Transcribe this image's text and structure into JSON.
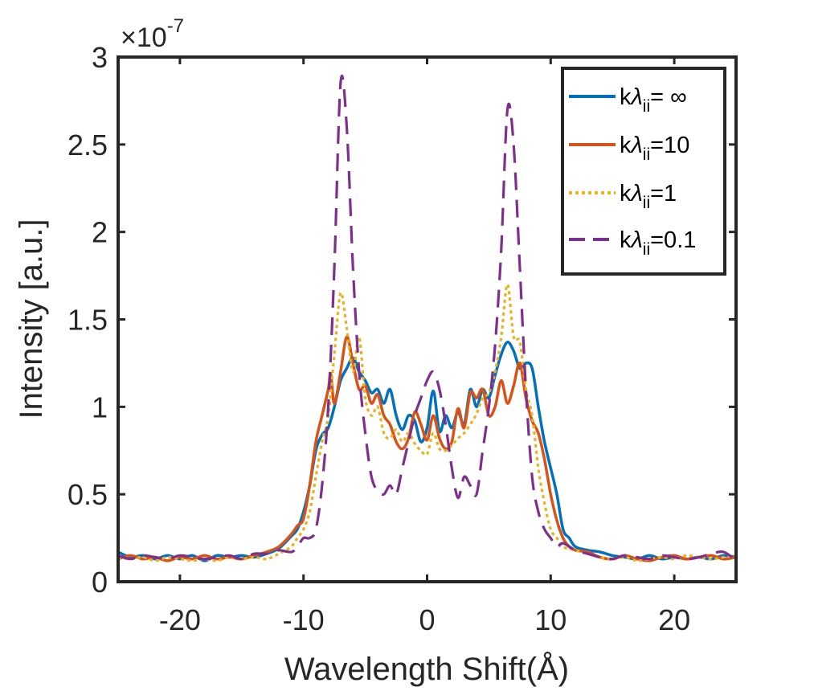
{
  "chart_data": {
    "type": "line",
    "title": "",
    "xlabel": "Wavelength Shift(Å)",
    "ylabel": "Intensity [a.u.]",
    "xlim": [
      -25,
      25
    ],
    "ylim": [
      0,
      3
    ],
    "y_multiplier": {
      "base": "×10",
      "exponent": "-7"
    },
    "xticks": [
      -20,
      -10,
      0,
      10,
      20
    ],
    "xtick_labels": [
      "-20",
      "-10",
      "0",
      "10",
      "20"
    ],
    "yticks": [
      0,
      0.5,
      1,
      1.5,
      2,
      2.5,
      3
    ],
    "ytick_labels": [
      "0",
      "0.5",
      "1",
      "1.5",
      "2",
      "2.5",
      "3"
    ],
    "grid": false,
    "legend_position": "top-right",
    "series": [
      {
        "name": "inf",
        "legend": {
          "k": "k",
          "lambda": "λ",
          "sub": "ii",
          "eq": "= ∞"
        },
        "color": "#0072BD",
        "style": "solid",
        "points": [
          [
            -25,
            0.17
          ],
          [
            -24,
            0.14
          ],
          [
            -23,
            0.15
          ],
          [
            -22,
            0.13
          ],
          [
            -21,
            0.15
          ],
          [
            -20,
            0.13
          ],
          [
            -19,
            0.15
          ],
          [
            -18,
            0.12
          ],
          [
            -17,
            0.15
          ],
          [
            -16,
            0.14
          ],
          [
            -15,
            0.15
          ],
          [
            -14,
            0.14
          ],
          [
            -13,
            0.16
          ],
          [
            -12,
            0.19
          ],
          [
            -11,
            0.26
          ],
          [
            -10.5,
            0.3
          ],
          [
            -10,
            0.4
          ],
          [
            -9.5,
            0.55
          ],
          [
            -9,
            0.75
          ],
          [
            -8.5,
            0.84
          ],
          [
            -8,
            0.88
          ],
          [
            -7.5,
            1.0
          ],
          [
            -7,
            1.15
          ],
          [
            -6.5,
            1.22
          ],
          [
            -6,
            1.28
          ],
          [
            -5.5,
            1.2
          ],
          [
            -5,
            1.15
          ],
          [
            -4.5,
            1.08
          ],
          [
            -4,
            1.1
          ],
          [
            -3.5,
            1.02
          ],
          [
            -3,
            1.1
          ],
          [
            -2.5,
            0.95
          ],
          [
            -2,
            0.87
          ],
          [
            -1.5,
            0.95
          ],
          [
            -1,
            0.92
          ],
          [
            -0.5,
            0.8
          ],
          [
            0,
            0.88
          ],
          [
            0.5,
            1.09
          ],
          [
            1,
            0.86
          ],
          [
            1.5,
            0.95
          ],
          [
            2,
            0.88
          ],
          [
            2.5,
            0.97
          ],
          [
            3,
            0.9
          ],
          [
            3.5,
            1.1
          ],
          [
            4,
            1.0
          ],
          [
            4.5,
            1.1
          ],
          [
            5,
            1.05
          ],
          [
            5.5,
            1.18
          ],
          [
            6,
            1.3
          ],
          [
            6.5,
            1.37
          ],
          [
            7,
            1.32
          ],
          [
            7.5,
            1.22
          ],
          [
            8,
            1.25
          ],
          [
            8.5,
            1.22
          ],
          [
            9,
            1.0
          ],
          [
            9.5,
            0.8
          ],
          [
            10,
            0.65
          ],
          [
            10.5,
            0.5
          ],
          [
            11,
            0.3
          ],
          [
            11.5,
            0.25
          ],
          [
            12,
            0.2
          ],
          [
            13,
            0.18
          ],
          [
            14,
            0.17
          ],
          [
            15,
            0.15
          ],
          [
            16,
            0.14
          ],
          [
            17,
            0.13
          ],
          [
            18,
            0.15
          ],
          [
            19,
            0.13
          ],
          [
            20,
            0.14
          ],
          [
            21,
            0.13
          ],
          [
            22,
            0.14
          ],
          [
            23,
            0.13
          ],
          [
            24,
            0.15
          ],
          [
            25,
            0.14
          ]
        ]
      },
      {
        "name": "10",
        "legend": {
          "k": "k",
          "lambda": "λ",
          "sub": "ii",
          "eq": "=10"
        },
        "color": "#D95319",
        "style": "solid",
        "points": [
          [
            -25,
            0.13
          ],
          [
            -24,
            0.15
          ],
          [
            -23,
            0.13
          ],
          [
            -22,
            0.14
          ],
          [
            -21,
            0.12
          ],
          [
            -20,
            0.14
          ],
          [
            -19,
            0.13
          ],
          [
            -18,
            0.15
          ],
          [
            -17,
            0.13
          ],
          [
            -16,
            0.14
          ],
          [
            -15,
            0.13
          ],
          [
            -14,
            0.15
          ],
          [
            -13,
            0.17
          ],
          [
            -12,
            0.2
          ],
          [
            -11,
            0.27
          ],
          [
            -10.5,
            0.32
          ],
          [
            -10,
            0.36
          ],
          [
            -9.5,
            0.55
          ],
          [
            -9,
            0.8
          ],
          [
            -8.5,
            0.95
          ],
          [
            -8,
            1.1
          ],
          [
            -7.8,
            1.19
          ],
          [
            -7.5,
            1.02
          ],
          [
            -7,
            1.2
          ],
          [
            -6.5,
            1.4
          ],
          [
            -6,
            1.25
          ],
          [
            -5.5,
            1.1
          ],
          [
            -5,
            1.12
          ],
          [
            -4.5,
            1.02
          ],
          [
            -4,
            1.07
          ],
          [
            -3.5,
            0.95
          ],
          [
            -3,
            0.9
          ],
          [
            -2.5,
            0.8
          ],
          [
            -2,
            0.76
          ],
          [
            -1.5,
            0.82
          ],
          [
            -1,
            0.97
          ],
          [
            -0.5,
            0.9
          ],
          [
            0,
            0.81
          ],
          [
            0.5,
            0.95
          ],
          [
            1,
            0.82
          ],
          [
            1.5,
            0.76
          ],
          [
            2,
            0.8
          ],
          [
            2.5,
            0.99
          ],
          [
            3,
            0.88
          ],
          [
            3.5,
            1.08
          ],
          [
            4,
            1.05
          ],
          [
            4.5,
            1.1
          ],
          [
            5,
            0.95
          ],
          [
            5.5,
            1.0
          ],
          [
            6,
            1.15
          ],
          [
            6.5,
            1.02
          ],
          [
            7,
            1.12
          ],
          [
            7.5,
            1.25
          ],
          [
            8,
            1.05
          ],
          [
            8.5,
            0.92
          ],
          [
            9,
            0.85
          ],
          [
            9.5,
            0.7
          ],
          [
            10,
            0.5
          ],
          [
            10.5,
            0.35
          ],
          [
            11,
            0.25
          ],
          [
            11.5,
            0.2
          ],
          [
            12,
            0.18
          ],
          [
            13,
            0.17
          ],
          [
            14,
            0.14
          ],
          [
            15,
            0.13
          ],
          [
            16,
            0.15
          ],
          [
            17,
            0.13
          ],
          [
            18,
            0.12
          ],
          [
            19,
            0.14
          ],
          [
            20,
            0.15
          ],
          [
            21,
            0.13
          ],
          [
            22,
            0.14
          ],
          [
            23,
            0.15
          ],
          [
            24,
            0.13
          ],
          [
            25,
            0.14
          ]
        ]
      },
      {
        "name": "1",
        "legend": {
          "k": "k",
          "lambda": "λ",
          "sub": "ii",
          "eq": "=1"
        },
        "color": "#EDB120",
        "style": "dotted",
        "points": [
          [
            -25,
            0.14
          ],
          [
            -24,
            0.13
          ],
          [
            -23,
            0.14
          ],
          [
            -22,
            0.12
          ],
          [
            -21,
            0.14
          ],
          [
            -20,
            0.13
          ],
          [
            -19,
            0.12
          ],
          [
            -18,
            0.13
          ],
          [
            -17,
            0.12
          ],
          [
            -16,
            0.14
          ],
          [
            -15,
            0.13
          ],
          [
            -14,
            0.14
          ],
          [
            -13,
            0.13
          ],
          [
            -12,
            0.16
          ],
          [
            -11,
            0.2
          ],
          [
            -10.5,
            0.25
          ],
          [
            -10,
            0.3
          ],
          [
            -9.5,
            0.4
          ],
          [
            -9,
            0.6
          ],
          [
            -8.5,
            0.8
          ],
          [
            -8,
            0.95
          ],
          [
            -7.5,
            1.3
          ],
          [
            -7,
            1.65
          ],
          [
            -6.5,
            1.45
          ],
          [
            -6,
            1.2
          ],
          [
            -5.5,
            1.4
          ],
          [
            -5,
            1.05
          ],
          [
            -4.5,
            0.95
          ],
          [
            -4,
            1.0
          ],
          [
            -3.5,
            0.85
          ],
          [
            -3,
            0.82
          ],
          [
            -2.5,
            0.87
          ],
          [
            -2,
            0.8
          ],
          [
            -1.5,
            0.85
          ],
          [
            -1,
            0.79
          ],
          [
            -0.5,
            0.75
          ],
          [
            0,
            0.73
          ],
          [
            0.5,
            0.85
          ],
          [
            1,
            0.76
          ],
          [
            1.5,
            0.75
          ],
          [
            2,
            0.78
          ],
          [
            2.5,
            0.82
          ],
          [
            3,
            0.85
          ],
          [
            3.5,
            0.9
          ],
          [
            4,
            0.96
          ],
          [
            4.5,
            1.05
          ],
          [
            5,
            1.08
          ],
          [
            5.5,
            1.2
          ],
          [
            6,
            1.4
          ],
          [
            6.5,
            1.7
          ],
          [
            7,
            1.4
          ],
          [
            7.5,
            1.37
          ],
          [
            8,
            1.1
          ],
          [
            8.5,
            0.95
          ],
          [
            9,
            0.65
          ],
          [
            9.5,
            0.45
          ],
          [
            10,
            0.3
          ],
          [
            10.5,
            0.25
          ],
          [
            11,
            0.2
          ],
          [
            12,
            0.18
          ],
          [
            13,
            0.16
          ],
          [
            14,
            0.14
          ],
          [
            15,
            0.13
          ],
          [
            16,
            0.14
          ],
          [
            17,
            0.12
          ],
          [
            18,
            0.13
          ],
          [
            19,
            0.14
          ],
          [
            20,
            0.13
          ],
          [
            21,
            0.15
          ],
          [
            22,
            0.14
          ],
          [
            23,
            0.13
          ],
          [
            24,
            0.14
          ],
          [
            25,
            0.15
          ]
        ]
      },
      {
        "name": "0.1",
        "legend": {
          "k": "k",
          "lambda": "λ",
          "sub": "ii",
          "eq": "=0.1"
        },
        "color": "#7E2F8E",
        "style": "dashed",
        "points": [
          [
            -25,
            0.15
          ],
          [
            -24,
            0.13
          ],
          [
            -23,
            0.15
          ],
          [
            -22,
            0.14
          ],
          [
            -21,
            0.13
          ],
          [
            -20,
            0.15
          ],
          [
            -19,
            0.14
          ],
          [
            -18,
            0.13
          ],
          [
            -17,
            0.14
          ],
          [
            -16,
            0.15
          ],
          [
            -15,
            0.13
          ],
          [
            -14,
            0.16
          ],
          [
            -13,
            0.16
          ],
          [
            -12,
            0.18
          ],
          [
            -11,
            0.17
          ],
          [
            -10.5,
            0.2
          ],
          [
            -10,
            0.25
          ],
          [
            -9.5,
            0.25
          ],
          [
            -9,
            0.3
          ],
          [
            -8.5,
            0.55
          ],
          [
            -8,
            1.0
          ],
          [
            -7.5,
            1.8
          ],
          [
            -7,
            2.85
          ],
          [
            -6.5,
            2.6
          ],
          [
            -6,
            1.8
          ],
          [
            -5.5,
            1.2
          ],
          [
            -5,
            0.85
          ],
          [
            -4.5,
            0.6
          ],
          [
            -4,
            0.52
          ],
          [
            -3.5,
            0.5
          ],
          [
            -3,
            0.55
          ],
          [
            -2.5,
            0.5
          ],
          [
            -2,
            0.65
          ],
          [
            -1.5,
            0.8
          ],
          [
            -1,
            0.95
          ],
          [
            -0.5,
            1.05
          ],
          [
            0,
            1.15
          ],
          [
            0.5,
            1.2
          ],
          [
            1,
            1.1
          ],
          [
            1.5,
            0.9
          ],
          [
            2,
            0.65
          ],
          [
            2.5,
            0.48
          ],
          [
            3,
            0.6
          ],
          [
            3.5,
            0.55
          ],
          [
            4,
            0.5
          ],
          [
            4.5,
            0.75
          ],
          [
            5,
            1.0
          ],
          [
            5.5,
            1.35
          ],
          [
            6,
            1.9
          ],
          [
            6.5,
            2.7
          ],
          [
            7,
            2.5
          ],
          [
            7.5,
            1.8
          ],
          [
            8,
            1.1
          ],
          [
            8.5,
            0.6
          ],
          [
            9,
            0.4
          ],
          [
            9.5,
            0.3
          ],
          [
            10,
            0.25
          ],
          [
            10.5,
            0.2
          ],
          [
            11,
            0.22
          ],
          [
            12,
            0.18
          ],
          [
            13,
            0.16
          ],
          [
            14,
            0.14
          ],
          [
            15,
            0.13
          ],
          [
            16,
            0.15
          ],
          [
            17,
            0.14
          ],
          [
            18,
            0.13
          ],
          [
            19,
            0.15
          ],
          [
            20,
            0.14
          ],
          [
            21,
            0.13
          ],
          [
            22,
            0.14
          ],
          [
            23,
            0.16
          ],
          [
            24,
            0.17
          ],
          [
            25,
            0.12
          ]
        ]
      }
    ]
  }
}
